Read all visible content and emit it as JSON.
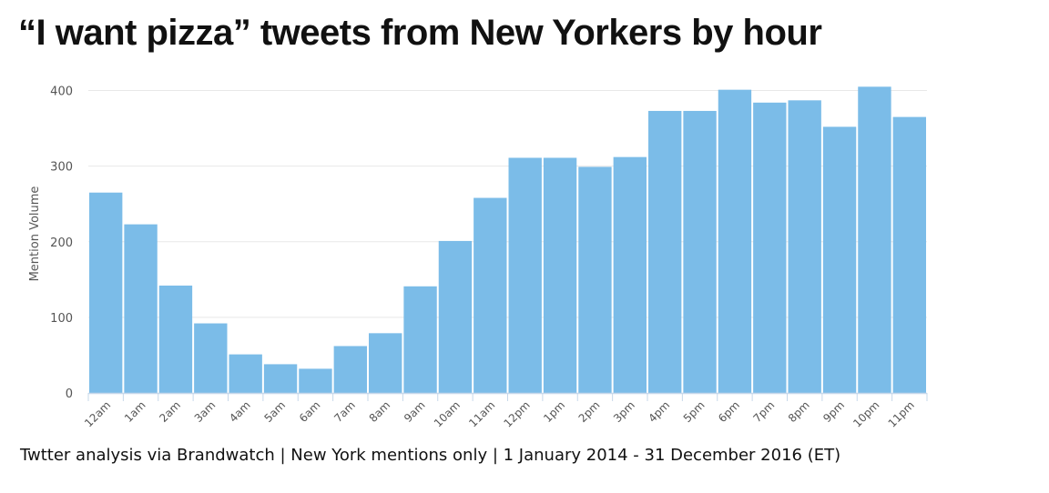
{
  "title": "“I want pizza” tweets from New Yorkers by hour",
  "footer": "Twtter analysis via Brandwatch | New York mentions only | 1 January 2014 - 31 December 2016 (ET)",
  "colors": {
    "bar": "#7bbce8",
    "grid": "#e8e8e8",
    "axis": "#c7d8ea"
  },
  "chart_data": {
    "type": "bar",
    "ylabel": "Mention Volume",
    "ylim": [
      0,
      400
    ],
    "yticks": [
      0,
      100,
      200,
      300,
      400
    ],
    "grid": true,
    "categories": [
      "12am",
      "1am",
      "2am",
      "3am",
      "4am",
      "5am",
      "6am",
      "7am",
      "8am",
      "9am",
      "10am",
      "11am",
      "12pm",
      "1pm",
      "2pm",
      "3pm",
      "4pm",
      "5pm",
      "6pm",
      "7pm",
      "8pm",
      "9pm",
      "10pm",
      "11pm"
    ],
    "values": [
      265,
      223,
      142,
      92,
      51,
      38,
      32,
      62,
      79,
      141,
      201,
      258,
      311,
      311,
      299,
      312,
      373,
      373,
      401,
      384,
      387,
      352,
      405,
      365
    ]
  }
}
